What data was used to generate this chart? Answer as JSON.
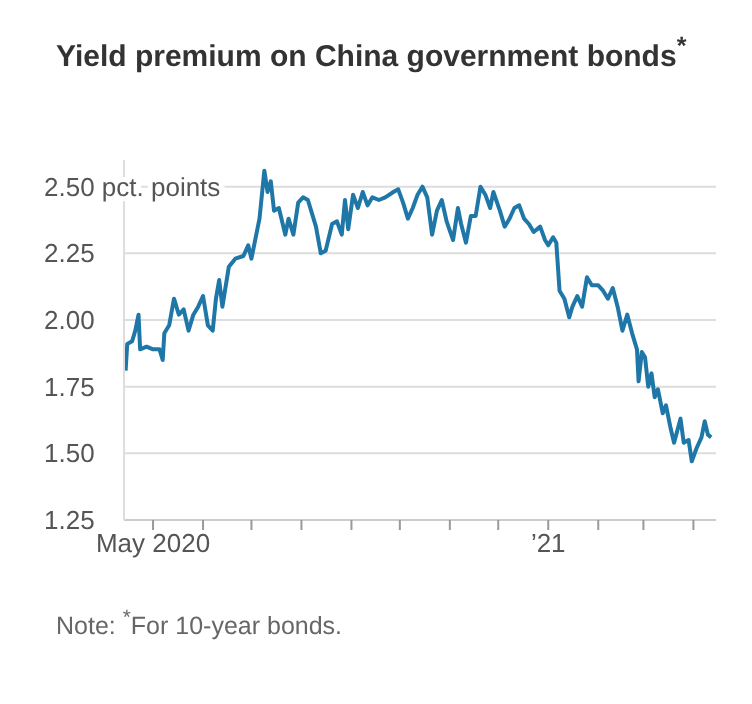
{
  "chart_data": {
    "type": "line",
    "title": "Yield premium on China government bonds$^{*}$",
    "x": [
      "2020-04-14",
      "2020-04-15",
      "2020-04-18",
      "2020-04-20",
      "2020-04-22",
      "2020-04-23",
      "2020-04-27",
      "2020-05-01",
      "2020-05-05",
      "2020-05-07",
      "2020-05-08",
      "2020-05-11",
      "2020-05-14",
      "2020-05-17",
      "2020-05-20",
      "2020-05-23",
      "2020-05-26",
      "2020-05-29",
      "2020-06-01",
      "2020-06-04",
      "2020-06-07",
      "2020-06-09",
      "2020-06-11",
      "2020-06-13",
      "2020-06-17",
      "2020-06-21",
      "2020-06-26",
      "2020-06-29",
      "2020-07-01",
      "2020-07-04",
      "2020-07-06",
      "2020-07-09",
      "2020-07-11",
      "2020-07-13",
      "2020-07-15",
      "2020-07-18",
      "2020-07-22",
      "2020-07-24",
      "2020-07-27",
      "2020-07-30",
      "2020-08-02",
      "2020-08-05",
      "2020-08-07",
      "2020-08-10",
      "2020-08-13",
      "2020-08-16",
      "2020-08-20",
      "2020-08-23",
      "2020-08-26",
      "2020-08-28",
      "2020-08-30",
      "2020-09-02",
      "2020-09-05",
      "2020-09-08",
      "2020-09-11",
      "2020-09-14",
      "2020-09-18",
      "2020-09-22",
      "2020-09-27",
      "2020-09-30",
      "2020-10-03",
      "2020-10-06",
      "2020-10-09",
      "2020-10-12",
      "2020-10-15",
      "2020-10-18",
      "2020-10-21",
      "2020-10-24",
      "2020-10-27",
      "2020-10-30",
      "2020-11-03",
      "2020-11-06",
      "2020-11-08",
      "2020-11-11",
      "2020-11-14",
      "2020-11-17",
      "2020-11-20",
      "2020-11-23",
      "2020-11-26",
      "2020-11-28",
      "2020-12-02",
      "2020-12-05",
      "2020-12-08",
      "2020-12-11",
      "2020-12-14",
      "2020-12-17",
      "2020-12-20",
      "2020-12-23",
      "2020-12-27",
      "2020-12-30",
      "2021-01-01",
      "2021-01-04",
      "2021-01-06",
      "2021-01-08",
      "2021-01-11",
      "2021-01-14",
      "2021-01-16",
      "2021-01-19",
      "2021-01-22",
      "2021-01-25",
      "2021-01-28",
      "2021-02-01",
      "2021-02-04",
      "2021-02-07",
      "2021-02-10",
      "2021-02-13",
      "2021-02-16",
      "2021-02-19",
      "2021-02-22",
      "2021-02-25",
      "2021-02-26",
      "2021-02-28",
      "2021-03-02",
      "2021-03-04",
      "2021-03-06",
      "2021-03-08",
      "2021-03-10",
      "2021-03-13",
      "2021-03-15",
      "2021-03-18",
      "2021-03-20",
      "2021-03-24",
      "2021-03-26",
      "2021-03-29",
      "2021-03-31",
      "2021-04-03",
      "2021-04-06",
      "2021-04-08",
      "2021-04-10",
      "2021-04-12"
    ],
    "series": [
      {
        "color": "#1f77a8",
        "values": [
          1.81,
          1.91,
          1.92,
          1.96,
          2.02,
          1.89,
          1.9,
          1.89,
          1.89,
          1.85,
          1.95,
          1.98,
          2.08,
          2.02,
          2.04,
          1.96,
          2.02,
          2.05,
          2.09,
          1.98,
          1.96,
          2.08,
          2.15,
          2.05,
          2.2,
          2.23,
          2.24,
          2.28,
          2.23,
          2.32,
          2.38,
          2.56,
          2.48,
          2.52,
          2.41,
          2.42,
          2.32,
          2.38,
          2.32,
          2.44,
          2.46,
          2.45,
          2.41,
          2.35,
          2.25,
          2.26,
          2.36,
          2.37,
          2.32,
          2.45,
          2.34,
          2.47,
          2.42,
          2.48,
          2.43,
          2.46,
          2.45,
          2.46,
          2.48,
          2.49,
          2.44,
          2.38,
          2.42,
          2.47,
          2.5,
          2.46,
          2.32,
          2.41,
          2.45,
          2.37,
          2.3,
          2.42,
          2.36,
          2.29,
          2.39,
          2.39,
          2.5,
          2.47,
          2.42,
          2.48,
          2.41,
          2.35,
          2.38,
          2.42,
          2.43,
          2.38,
          2.36,
          2.33,
          2.35,
          2.3,
          2.28,
          2.31,
          2.29,
          2.11,
          2.08,
          2.01,
          2.05,
          2.09,
          2.05,
          2.16,
          2.13,
          2.13,
          2.11,
          2.08,
          2.12,
          2.05,
          1.96,
          2.02,
          1.95,
          1.89,
          1.77,
          1.88,
          1.86,
          1.75,
          1.8,
          1.71,
          1.74,
          1.65,
          1.68,
          1.59,
          1.54,
          1.63,
          1.54,
          1.55,
          1.47,
          1.52,
          1.56,
          1.62,
          1.57,
          1.56
        ]
      }
    ],
    "xlim": [
      "2020-04-13",
      "2021-04-15"
    ],
    "xticks": [
      {
        "value": "2020-05-01",
        "label": "May 2020"
      },
      {
        "value": "2020-06-01",
        "label": null
      },
      {
        "value": "2020-07-01",
        "label": null
      },
      {
        "value": "2020-08-01",
        "label": null
      },
      {
        "value": "2020-09-01",
        "label": null
      },
      {
        "value": "2020-10-01",
        "label": null
      },
      {
        "value": "2020-11-01",
        "label": null
      },
      {
        "value": "2020-12-01",
        "label": null
      },
      {
        "value": "2021-01-01",
        "label": "’21"
      },
      {
        "value": "2021-02-01",
        "label": null
      },
      {
        "value": "2021-03-01",
        "label": null
      },
      {
        "value": "2021-04-01",
        "label": null
      }
    ],
    "ylim": [
      1.25,
      2.6
    ],
    "yticks": [
      {
        "value": 1.25,
        "label": "1.25"
      },
      {
        "value": 1.5,
        "label": "1.50"
      },
      {
        "value": 1.75,
        "label": "1.75"
      },
      {
        "value": 2,
        "label": "2.00"
      },
      {
        "value": 2.25,
        "label": "2.25"
      },
      {
        "value": 2.5,
        "label": "2.50 pct. points"
      }
    ],
    "grid": "y",
    "annotations": [
      "Note: $^{*}$For 10-year bonds."
    ]
  }
}
